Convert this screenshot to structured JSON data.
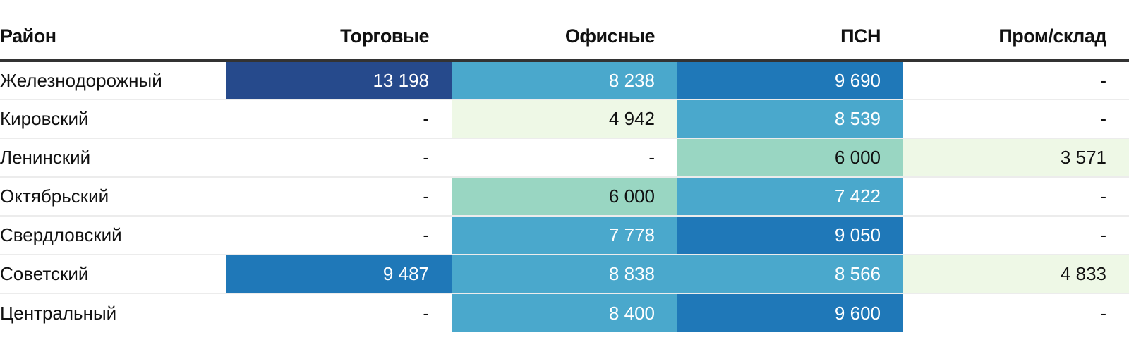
{
  "chart_data": {
    "type": "table",
    "columns": [
      "Район",
      "Торговые",
      "Офисные",
      "ПСН",
      "Пром/склад"
    ],
    "rows": [
      {
        "district": "Железнодорожный",
        "values": [
          13198,
          8238,
          9690,
          null
        ]
      },
      {
        "district": "Кировский",
        "values": [
          null,
          4942,
          8539,
          null
        ]
      },
      {
        "district": "Ленинский",
        "values": [
          null,
          null,
          6000,
          3571
        ]
      },
      {
        "district": "Октябрьский",
        "values": [
          null,
          6000,
          7422,
          null
        ]
      },
      {
        "district": "Свердловский",
        "values": [
          null,
          7778,
          9050,
          null
        ]
      },
      {
        "district": "Советский",
        "values": [
          9487,
          8838,
          8566,
          4833
        ]
      },
      {
        "district": "Центральный",
        "values": [
          null,
          8400,
          9600,
          null
        ]
      }
    ],
    "missing_symbol": "-",
    "color_scale": {
      "thresholds": [
        5000,
        7000,
        9000,
        12000
      ],
      "colors": [
        "#eef8e6",
        "#99d6c2",
        "#4aa8cc",
        "#1f78b8",
        "#264a8c"
      ],
      "text_dark": "#111111",
      "text_light": "#ffffff"
    }
  }
}
